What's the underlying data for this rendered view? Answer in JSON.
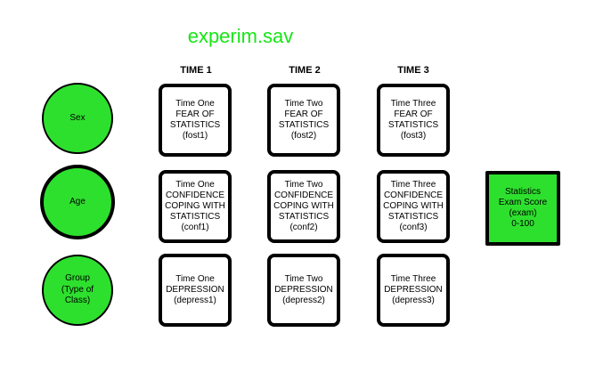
{
  "title": "experim.sav",
  "columns": [
    "TIME 1",
    "TIME 2",
    "TIME 3"
  ],
  "circles": [
    "Sex",
    "Age",
    "Group\n(Type of\nClass)"
  ],
  "rows": [
    [
      "Time One\nFEAR OF\nSTATISTICS\n(fost1)",
      "Time Two\nFEAR OF\nSTATISTICS\n(fost2)",
      "Time Three\nFEAR OF\nSTATISTICS\n(fost3)"
    ],
    [
      "Time One\nCONFIDENCE\nCOPING WITH\nSTATISTICS\n(conf1)",
      "Time Two\nCONFIDENCE\nCOPING WITH\nSTATISTICS\n(conf2)",
      "Time Three\nCONFIDENCE\nCOPING WITH\nSTATISTICS\n(conf3)"
    ],
    [
      "Time One\nDEPRESSION\n(depress1)",
      "Time Two\nDEPRESSION\n(depress2)",
      "Time Three\nDEPRESSION\n(depress3)"
    ]
  ],
  "outcome": "Statistics\nExam Score\n(exam)\n0-100",
  "colors": {
    "title": "#17e617",
    "node_fill": "#2ee02e",
    "border": "#000000"
  }
}
